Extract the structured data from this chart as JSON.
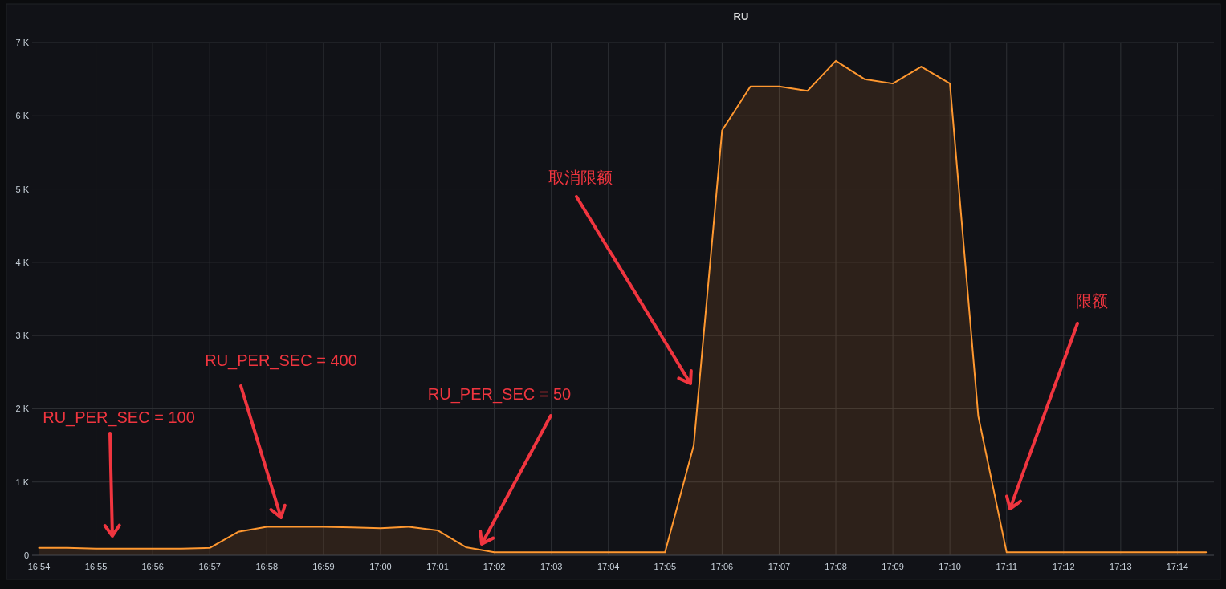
{
  "chart_data": {
    "type": "area",
    "title": "RU",
    "x": [
      16.9,
      16.9083,
      16.9167,
      16.925,
      16.9333,
      16.9417,
      16.95,
      16.9583,
      16.9667,
      16.975,
      16.9833,
      16.9917,
      17.0,
      17.0083,
      17.0167,
      17.025,
      17.0333,
      17.0417,
      17.05,
      17.0583,
      17.0667,
      17.075,
      17.0833,
      17.0917,
      17.1,
      17.1083,
      17.1167,
      17.125,
      17.1333,
      17.1417,
      17.15,
      17.1583,
      17.1667,
      17.175,
      17.1833,
      17.1917,
      17.2,
      17.2083,
      17.2167,
      17.225,
      17.2333,
      17.2417
    ],
    "series": [
      {
        "color": "#ff9830",
        "values": [
          100,
          100,
          90,
          90,
          90,
          90,
          100,
          320,
          390,
          390,
          390,
          380,
          370,
          390,
          340,
          110,
          40,
          40,
          40,
          40,
          40,
          40,
          40,
          1500,
          5800,
          6400,
          6400,
          6340,
          6750,
          6500,
          6440,
          6670,
          6440,
          1900,
          40,
          40,
          40,
          40,
          40,
          40,
          40,
          40
        ]
      }
    ],
    "xlim": [
      16.898,
      17.244
    ],
    "xticks": [
      {
        "value": 16.9,
        "label": "16:54"
      },
      {
        "value": 16.9167,
        "label": "16:55"
      },
      {
        "value": 16.9333,
        "label": "16:56"
      },
      {
        "value": 16.95,
        "label": "16:57"
      },
      {
        "value": 16.9667,
        "label": "16:58"
      },
      {
        "value": 16.9833,
        "label": "16:59"
      },
      {
        "value": 17.0,
        "label": "17:00"
      },
      {
        "value": 17.0167,
        "label": "17:01"
      },
      {
        "value": 17.0333,
        "label": "17:02"
      },
      {
        "value": 17.05,
        "label": "17:03"
      },
      {
        "value": 17.0667,
        "label": "17:04"
      },
      {
        "value": 17.0833,
        "label": "17:05"
      },
      {
        "value": 17.1,
        "label": "17:06"
      },
      {
        "value": 17.1167,
        "label": "17:07"
      },
      {
        "value": 17.1333,
        "label": "17:08"
      },
      {
        "value": 17.15,
        "label": "17:09"
      },
      {
        "value": 17.1667,
        "label": "17:10"
      },
      {
        "value": 17.1833,
        "label": "17:11"
      },
      {
        "value": 17.2,
        "label": "17:12"
      },
      {
        "value": 17.2167,
        "label": "17:13"
      },
      {
        "value": 17.2333,
        "label": "17:14"
      }
    ],
    "ylim": [
      0,
      7000
    ],
    "yticks": [
      0,
      {
        "value": 1000,
        "label": "1 K"
      },
      {
        "value": 2000,
        "label": "2 K"
      },
      {
        "value": 3000,
        "label": "3 K"
      },
      {
        "value": 4000,
        "label": "4 K"
      },
      {
        "value": 5000,
        "label": "5 K"
      },
      {
        "value": 6000,
        "label": "6 K"
      },
      {
        "value": 7000,
        "label": "7 K"
      }
    ],
    "grid": true,
    "annotations": [
      "RU_PER_SEC = 100",
      "RU_PER_SEC = 400",
      "RU_PER_SEC = 50",
      "取消限额",
      "限额"
    ]
  }
}
